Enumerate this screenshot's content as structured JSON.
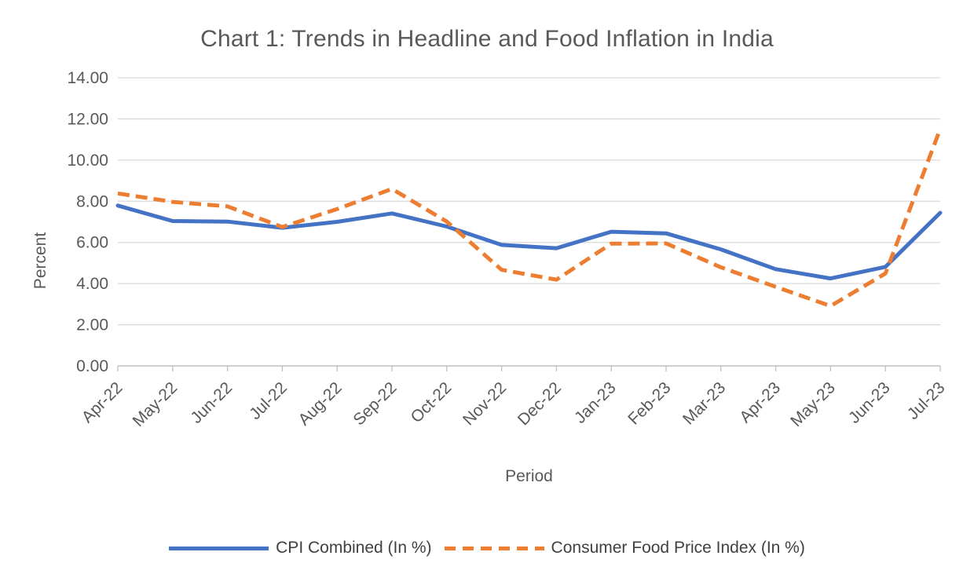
{
  "page_title": "Chart 1: Trends in Headline and Food Inflation in India",
  "chart_data": {
    "type": "line",
    "title": "Chart 1: Trends in Headline and Food Inflation in India",
    "xlabel": "Period",
    "ylabel": "Percent",
    "ylim": [
      0,
      14
    ],
    "ytick_step": 2,
    "ytick_decimals": 2,
    "grid": true,
    "legend_position": "bottom",
    "categories": [
      "Apr-22",
      "May-22",
      "Jun-22",
      "Jul-22",
      "Aug-22",
      "Sep-22",
      "Oct-22",
      "Nov-22",
      "Dec-22",
      "Jan-23",
      "Feb-23",
      "Mar-23",
      "Apr-23",
      "May-23",
      "Jun-23",
      "Jul-23"
    ],
    "series": [
      {
        "name": "CPI Combined (In %)",
        "style": "solid",
        "color": "#4472C4",
        "values": [
          7.79,
          7.04,
          7.01,
          6.71,
          7.0,
          7.41,
          6.77,
          5.88,
          5.72,
          6.52,
          6.44,
          5.66,
          4.7,
          4.25,
          4.81,
          7.44
        ]
      },
      {
        "name": "Consumer Food Price Index (In %)",
        "style": "dashed",
        "color": "#ED7D31",
        "values": [
          8.38,
          7.97,
          7.75,
          6.75,
          7.62,
          8.6,
          7.01,
          4.67,
          4.19,
          5.94,
          5.95,
          4.79,
          3.84,
          2.91,
          4.49,
          11.51
        ]
      }
    ],
    "colors": {
      "grid": "#D9D9D9",
      "axis": "#BFBFBF",
      "tick_text": "#595959",
      "title_text": "#595959",
      "legend_text": "#404040"
    }
  }
}
